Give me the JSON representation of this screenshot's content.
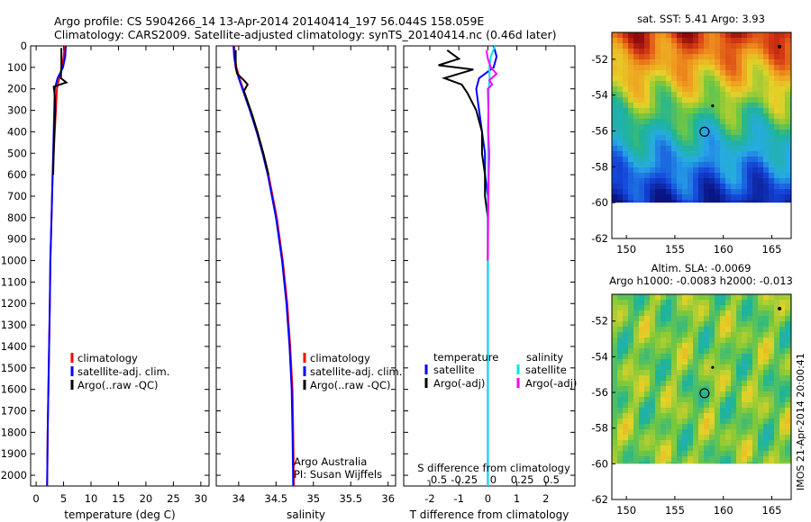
{
  "header": {
    "line1": "Argo profile: CS 5904266_14 13-Apr-2014 20140414_197 56.044S 158.059E",
    "line2": "Climatology: CARS2009. Satellite-adjusted climatology: synTS_20140414.nc (0.46d later)"
  },
  "chart_data": [
    {
      "type": "line",
      "panel": "temperature",
      "xlabel": "temperature (deg C)",
      "ylabel": "",
      "xlim": [
        -1,
        31.5
      ],
      "ylim": [
        2050,
        0
      ],
      "xticks": [
        0,
        5,
        10,
        15,
        20,
        25,
        30
      ],
      "yticks": [
        0,
        100,
        200,
        300,
        400,
        500,
        600,
        700,
        800,
        900,
        1000,
        1100,
        1200,
        1300,
        1400,
        1500,
        1600,
        1700,
        1800,
        1900,
        2000
      ],
      "legend": [
        "climatology",
        "satellite-adj. clim.",
        "Argo(..raw -QC)"
      ],
      "series": [
        {
          "name": "climatology",
          "color": "#ff0000",
          "depth": [
            0,
            50,
            100,
            150,
            200,
            300,
            400,
            500,
            600,
            800,
            1000,
            1200,
            1500,
            1800,
            2050
          ],
          "values": [
            5.2,
            5.0,
            4.7,
            4.2,
            3.8,
            3.6,
            3.4,
            3.2,
            3.0,
            2.8,
            2.6,
            2.5,
            2.3,
            2.1,
            2.0
          ]
        },
        {
          "name": "satellite-adj. clim.",
          "color": "#0000ff",
          "depth": [
            0,
            50,
            100,
            150,
            200,
            300,
            400,
            500,
            600,
            800,
            1000,
            1200,
            1500,
            1800,
            2050
          ],
          "values": [
            5.4,
            5.3,
            4.9,
            3.9,
            3.4,
            3.3,
            3.2,
            3.1,
            3.0,
            2.8,
            2.6,
            2.5,
            2.3,
            2.1,
            2.0
          ]
        },
        {
          "name": "Argo(..raw -QC)",
          "color": "#000000",
          "depth": [
            10,
            100,
            150,
            170,
            190,
            230,
            300,
            400,
            500,
            600
          ],
          "values": [
            4.6,
            4.6,
            4.5,
            5.5,
            3.2,
            3.4,
            3.5,
            3.3,
            3.2,
            3.1
          ]
        }
      ]
    },
    {
      "type": "line",
      "panel": "salinity",
      "xlabel": "salinity",
      "ylabel": "",
      "xlim": [
        33.7,
        36.1
      ],
      "ylim": [
        2050,
        0
      ],
      "xticks": [
        34,
        34.5,
        35,
        35.5,
        36
      ],
      "legend": [
        "climatology",
        "satellite-adj. clim.",
        "Argo(..raw -QC)"
      ],
      "annotation": [
        "Argo Australia",
        "PI: Susan Wijffels"
      ],
      "series": [
        {
          "name": "climatology",
          "color": "#ff0000",
          "depth": [
            0,
            50,
            100,
            150,
            200,
            300,
            400,
            500,
            600,
            800,
            1000,
            1200,
            1400,
            1600,
            1800,
            2050
          ],
          "values": [
            33.94,
            33.95,
            33.97,
            34.01,
            34.06,
            34.16,
            34.25,
            34.33,
            34.4,
            34.51,
            34.59,
            34.65,
            34.69,
            34.72,
            34.73,
            34.74
          ]
        },
        {
          "name": "satellite-adj. clim.",
          "color": "#0000ff",
          "depth": [
            0,
            50,
            100,
            150,
            200,
            300,
            400,
            500,
            600,
            800,
            1000,
            1200,
            1400,
            1600,
            1800,
            2050
          ],
          "values": [
            33.93,
            33.94,
            33.96,
            34.0,
            34.05,
            34.15,
            34.24,
            34.32,
            34.39,
            34.5,
            34.58,
            34.64,
            34.68,
            34.71,
            34.72,
            34.73
          ]
        },
        {
          "name": "Argo(..raw -QC)",
          "color": "#000000",
          "depth": [
            20,
            100,
            130,
            160,
            180,
            210,
            260,
            320,
            400,
            500,
            600
          ],
          "values": [
            33.96,
            33.96,
            33.98,
            34.07,
            34.12,
            34.07,
            34.12,
            34.18,
            34.25,
            34.33,
            34.4
          ]
        }
      ]
    },
    {
      "type": "line",
      "panel": "difference",
      "xlabel": "T difference from climatology",
      "xlabel2": "S difference from climatology",
      "xlim": [
        -2.9,
        3.0
      ],
      "ylim": [
        2050,
        0
      ],
      "xticks": [
        -2,
        -1,
        0,
        1,
        2
      ],
      "xticks_s": [
        -0.5,
        -0.25,
        0,
        0.25,
        0.5
      ],
      "legend_titles": [
        "temperature",
        "salinity"
      ],
      "legend": [
        "satellite",
        "Argo(-adj)",
        "satellite",
        "Argo(-adj)"
      ],
      "series": [
        {
          "name": "T satellite",
          "color": "#0000ff",
          "depth": [
            0,
            50,
            100,
            150,
            200,
            300,
            400,
            500,
            600,
            700,
            800,
            1000,
            1500,
            2050
          ],
          "values": [
            0.2,
            0.3,
            0.2,
            -0.3,
            -0.4,
            -0.3,
            -0.2,
            -0.1,
            -0.1,
            0.0,
            0.0,
            0.0,
            0.0,
            0.0
          ]
        },
        {
          "name": "T Argo(-adj)",
          "color": "#000000",
          "depth": [
            20,
            60,
            90,
            110,
            150,
            180,
            220,
            300,
            400,
            500,
            600,
            700,
            800,
            900,
            1000
          ],
          "values": [
            -1.4,
            -1.0,
            -1.7,
            -0.5,
            -1.5,
            -0.9,
            -0.7,
            -0.4,
            -0.2,
            -0.2,
            -0.1,
            -0.1,
            0.0,
            0.0,
            0.0
          ]
        },
        {
          "name": "S satellite",
          "color": "#00e5ee",
          "depth": [
            0,
            50,
            100,
            150,
            200,
            300,
            400,
            600,
            800,
            1000,
            1500,
            2050
          ],
          "values": [
            0.25,
            0.1,
            0.05,
            0.06,
            0.03,
            0.02,
            0.01,
            0.01,
            0.0,
            0.0,
            0.0,
            0.0
          ]
        },
        {
          "name": "S Argo(-adj)",
          "color": "#ff00ff",
          "depth": [
            20,
            60,
            100,
            130,
            160,
            180,
            200,
            300,
            400,
            500,
            600,
            800,
            1000
          ],
          "values": [
            -0.05,
            0.0,
            0.1,
            0.3,
            0.05,
            0.15,
            0.0,
            0.02,
            0.01,
            0.05,
            0.03,
            0.01,
            0.0
          ]
        }
      ]
    },
    {
      "type": "heatmap",
      "panel": "sst_map",
      "title": "sat. SST: 5.41 Argo: 3.93",
      "xlim": [
        148.5,
        167
      ],
      "ylim": [
        -62,
        -50.5
      ],
      "xticks": [
        150,
        155,
        160,
        165
      ],
      "yticks": [
        -52,
        -54,
        -56,
        -58,
        -60,
        -62
      ],
      "marker": {
        "lon": 158.059,
        "lat": -56.044
      }
    },
    {
      "type": "heatmap",
      "panel": "sla_map",
      "title": "Altim. SLA: -0.0069",
      "subtitle": "Argo h1000: -0.0083 h2000: -0.013",
      "xlim": [
        148.5,
        167
      ],
      "ylim": [
        -62,
        -50.5
      ],
      "xticks": [
        150,
        155,
        160,
        165
      ],
      "yticks": [
        -52,
        -54,
        -56,
        -58,
        -60,
        -62
      ],
      "marker": {
        "lon": 158.059,
        "lat": -56.044
      }
    }
  ],
  "footer": {
    "stamp": "IMOS 21-Apr-2014 20:00:41"
  }
}
